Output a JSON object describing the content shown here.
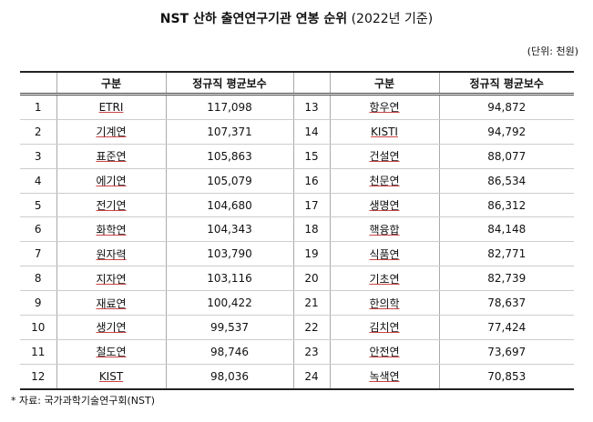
{
  "header": {
    "title": "NST 산하 출연연구기관 연봉 순위",
    "subtitle": "(2022년 기준)",
    "unit": "(단위: 천원)"
  },
  "table": {
    "columns": [
      "구분",
      "정규직 평균보수",
      "구분",
      "정규직 평균보수"
    ],
    "rows": [
      [
        1,
        "ETRI",
        "117,098",
        13,
        "항우연",
        "94,872"
      ],
      [
        2,
        "기계연",
        "107,371",
        14,
        "KISTI",
        "94,792"
      ],
      [
        3,
        "표준연",
        "105,863",
        15,
        "건설연",
        "88,077"
      ],
      [
        4,
        "에기연",
        "105,079",
        16,
        "천문연",
        "86,534"
      ],
      [
        5,
        "전기연",
        "104,680",
        17,
        "생명연",
        "86,312"
      ],
      [
        6,
        "화학연",
        "104,343",
        18,
        "핵융합",
        "84,148"
      ],
      [
        7,
        "원자력",
        "103,790",
        19,
        "식품연",
        "82,771"
      ],
      [
        8,
        "지자연",
        "103,116",
        20,
        "기초연",
        "82,739"
      ],
      [
        9,
        "재료연",
        "100,422",
        21,
        "한의학",
        "78,637"
      ],
      [
        10,
        "생기연",
        "99,537",
        22,
        "김치연",
        "77,424"
      ],
      [
        11,
        "철도연",
        "98,746",
        23,
        "안전연",
        "73,697"
      ],
      [
        12,
        "KIST",
        "98,036",
        24,
        "녹색연",
        "70,853"
      ]
    ]
  },
  "source": "* 자료: 국가과학기술연구회(NST)"
}
